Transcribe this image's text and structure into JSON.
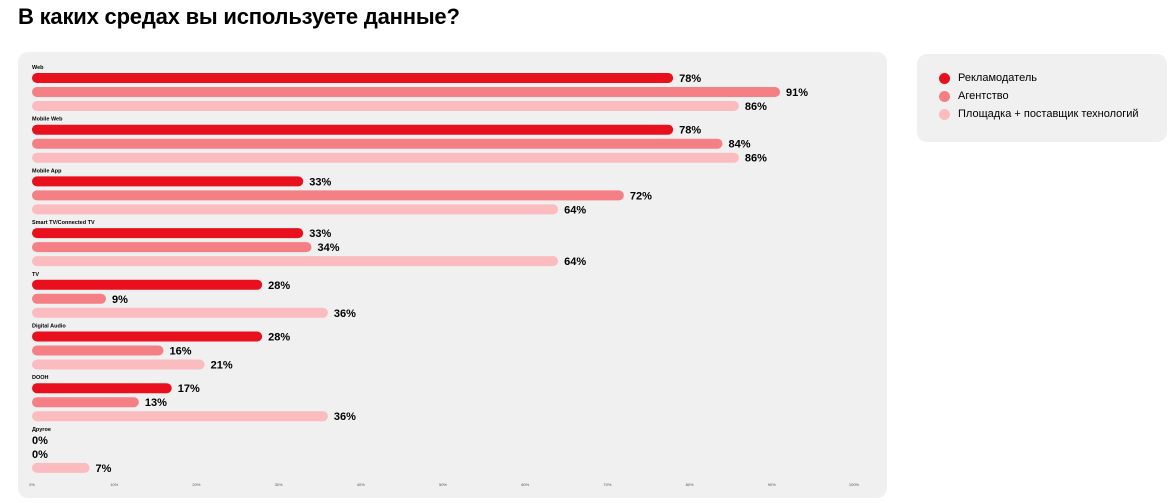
{
  "page": {
    "title": "В каких средах вы используете данные?"
  },
  "legend": {
    "items": [
      {
        "label": "Рекламодатель",
        "color": "#e8101d"
      },
      {
        "label": "Агентство",
        "color": "#f47f84"
      },
      {
        "label": "Площадка + поставщик технологий",
        "color": "#fbbcbf"
      }
    ]
  },
  "chart_data": {
    "type": "bar",
    "orientation": "horizontal",
    "categories": [
      "Web",
      "Mobile Web",
      "Mobile App",
      "Smart TV/Connected TV",
      "TV",
      "Digital Audio",
      "DOOH",
      "Другое"
    ],
    "series": [
      {
        "name": "Рекламодатель",
        "color": "#e8101d",
        "values": [
          78,
          78,
          33,
          33,
          28,
          28,
          17,
          0
        ]
      },
      {
        "name": "Агентство",
        "color": "#f47f84",
        "values": [
          91,
          84,
          72,
          34,
          9,
          16,
          13,
          0
        ]
      },
      {
        "name": "Площадка + поставщик технологий",
        "color": "#fbbcbf",
        "values": [
          86,
          86,
          64,
          64,
          36,
          21,
          36,
          7
        ]
      }
    ],
    "value_suffix": "%",
    "xlim": [
      0,
      100
    ],
    "x_ticks": [
      "0%",
      "10%",
      "20%",
      "30%",
      "40%",
      "50%",
      "60%",
      "70%",
      "80%",
      "90%",
      "100%"
    ],
    "legend_placement": "right",
    "grid": false
  }
}
